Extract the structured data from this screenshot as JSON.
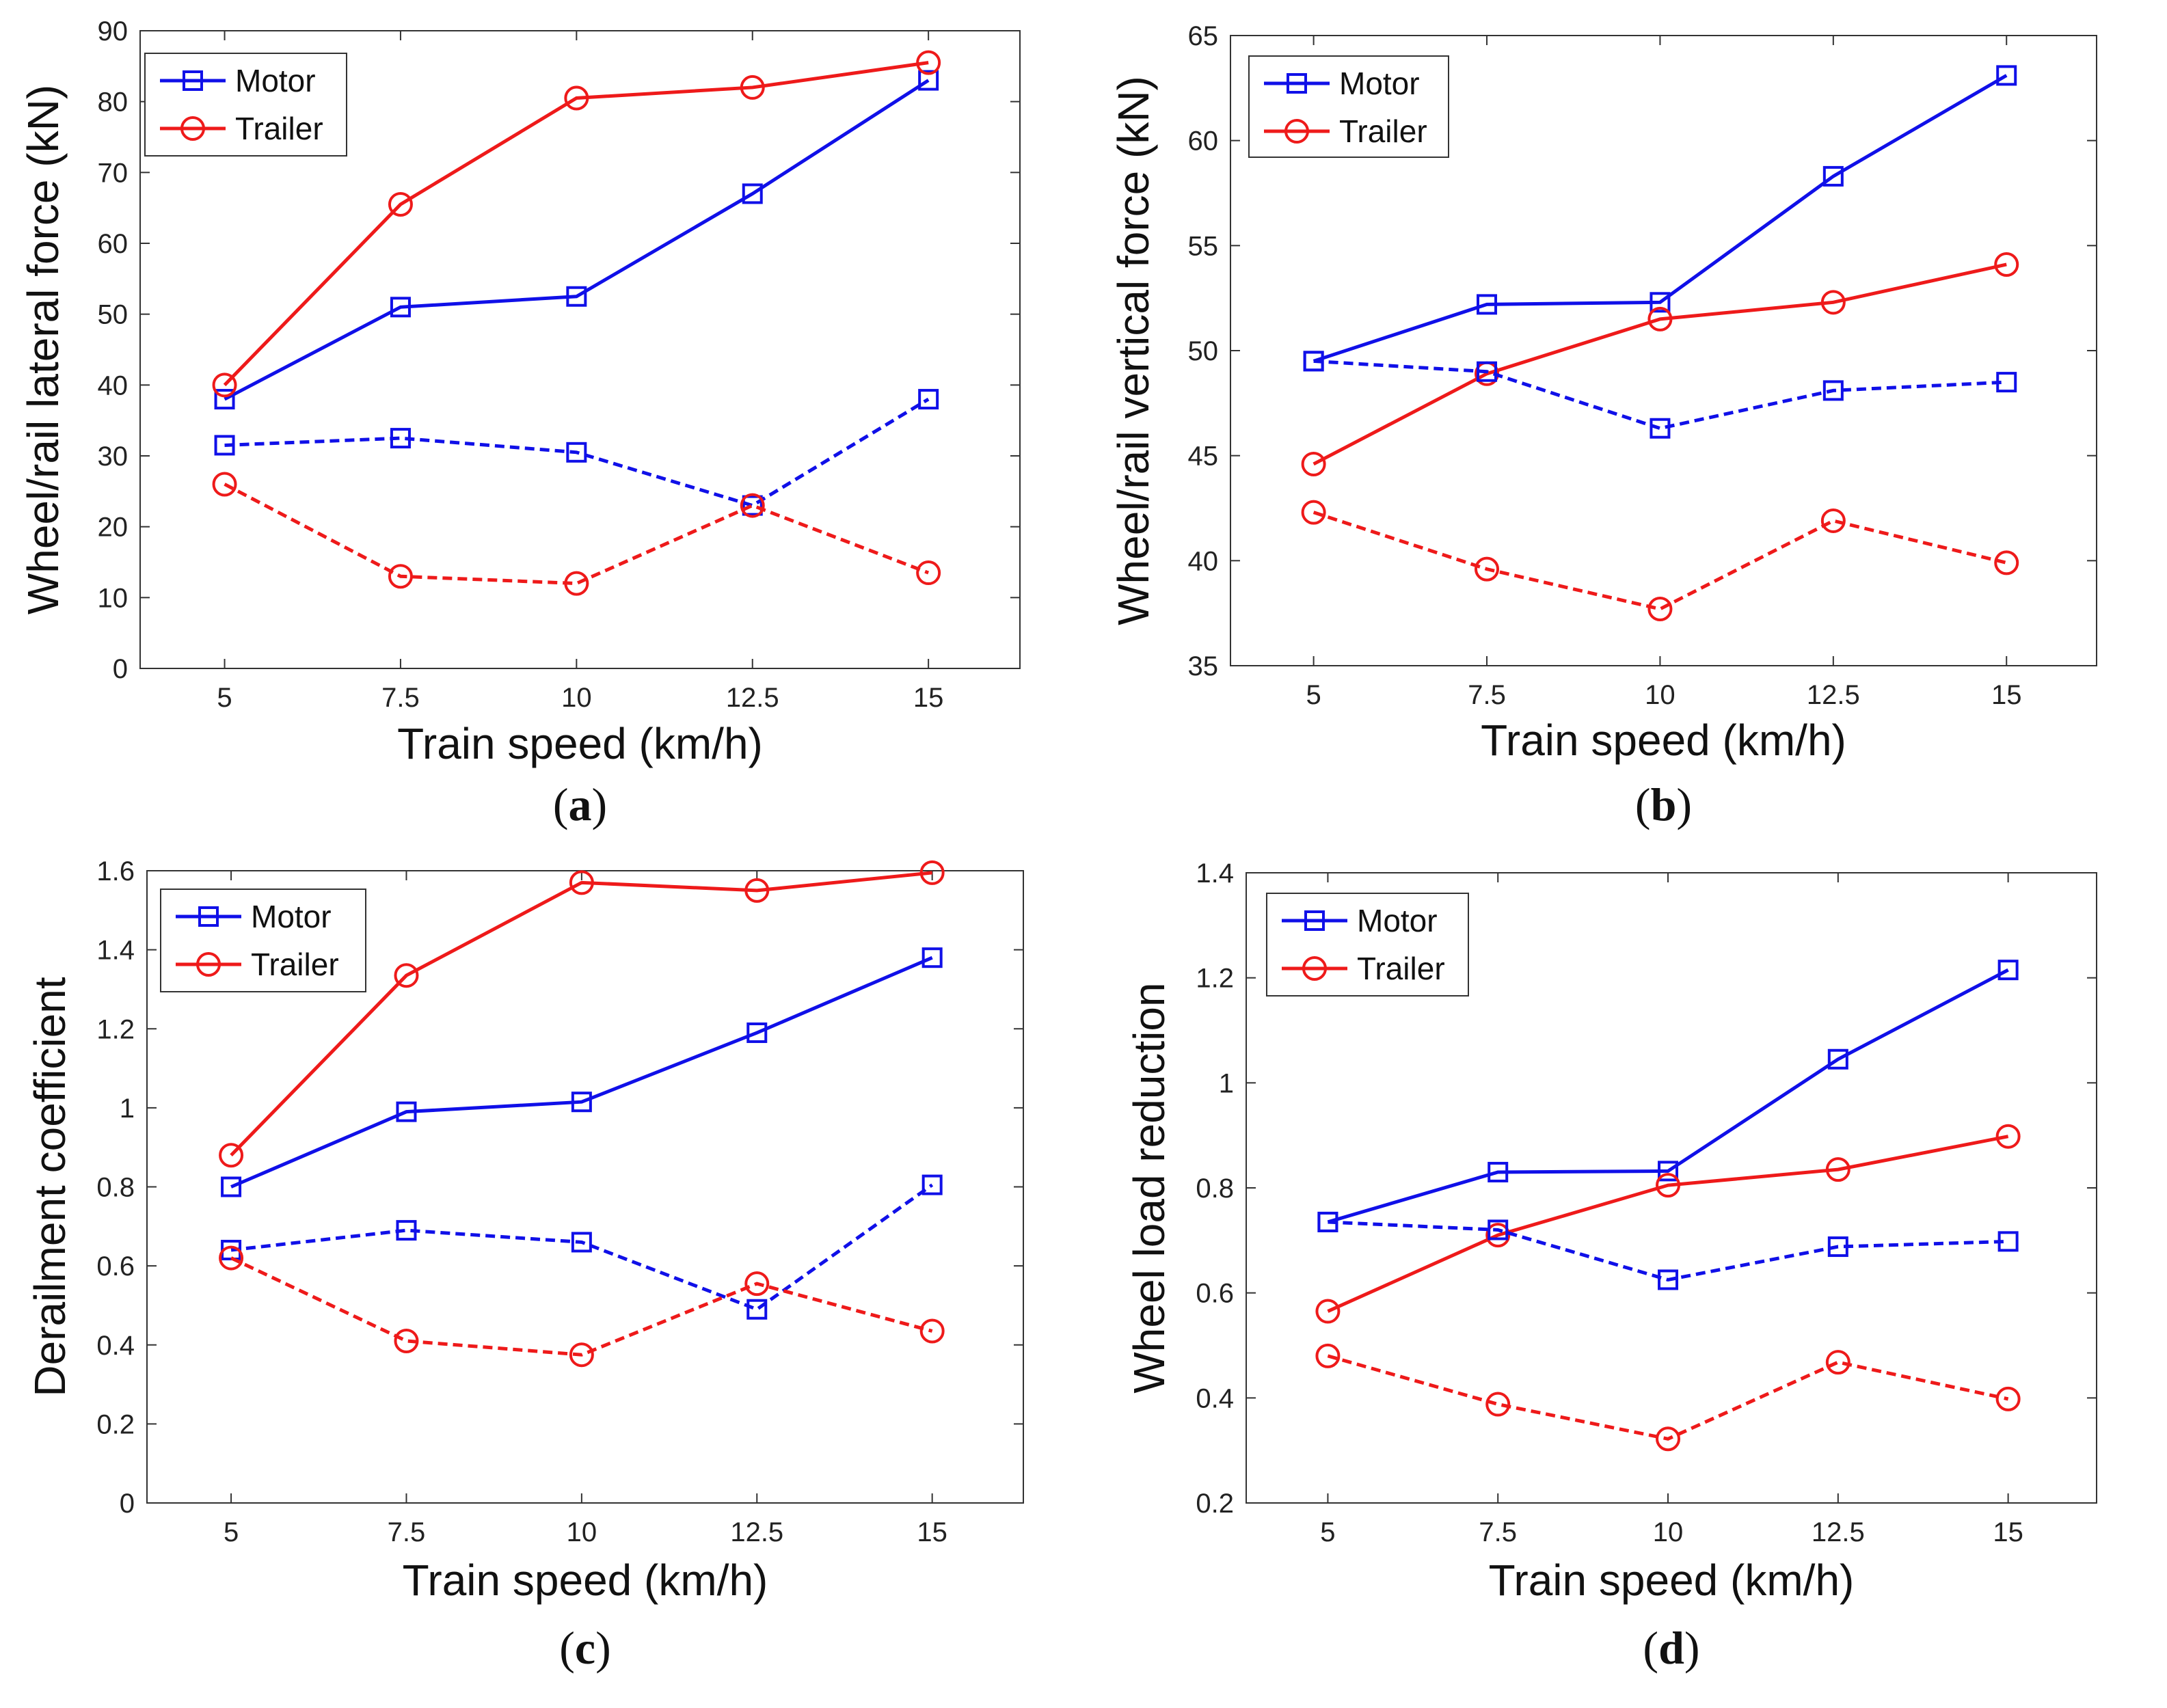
{
  "colors": {
    "motor": "#1010e8",
    "trailer": "#ee1a1a"
  },
  "legend": [
    "Motor",
    "Trailer"
  ],
  "chart_data": [
    {
      "panel": "a",
      "type": "line",
      "x": [
        5,
        7.5,
        10,
        12.5,
        15
      ],
      "xticks": [
        "5",
        "7.5",
        "10",
        "12.5",
        "15"
      ],
      "xlim": [
        3.8,
        16.3
      ],
      "ylim": [
        0,
        90
      ],
      "yticks": [
        0,
        10,
        20,
        30,
        40,
        50,
        60,
        70,
        80,
        90
      ],
      "ytick_labels": [
        "0",
        "10",
        "20",
        "30",
        "40",
        "50",
        "60",
        "70",
        "80",
        "90"
      ],
      "xlabel": "Train speed (km/h)",
      "ylabel": "Wheel/rail lateral force (kN)",
      "label": "a",
      "series": [
        {
          "name": "Motor",
          "style": "solid",
          "marker": "square",
          "color": "motor",
          "values": [
            38,
            51,
            52.5,
            67,
            83
          ]
        },
        {
          "name": "Trailer",
          "style": "solid",
          "marker": "circle",
          "color": "trailer",
          "values": [
            40,
            65.5,
            80.5,
            82,
            85.5
          ]
        },
        {
          "name": "Motor",
          "style": "dashed",
          "marker": "square",
          "color": "motor",
          "values": [
            31.5,
            32.5,
            30.5,
            23,
            38
          ]
        },
        {
          "name": "Trailer",
          "style": "dashed",
          "marker": "circle",
          "color": "trailer",
          "values": [
            26,
            13,
            12,
            23,
            13.5
          ]
        }
      ]
    },
    {
      "panel": "b",
      "type": "line",
      "x": [
        5,
        7.5,
        10,
        12.5,
        15
      ],
      "xticks": [
        "5",
        "7.5",
        "10",
        "12.5",
        "15"
      ],
      "xlim": [
        3.8,
        16.3
      ],
      "ylim": [
        35,
        65
      ],
      "yticks": [
        35,
        40,
        45,
        50,
        55,
        60,
        65
      ],
      "ytick_labels": [
        "35",
        "40",
        "45",
        "50",
        "55",
        "60",
        "65"
      ],
      "xlabel": "Train speed (km/h)",
      "ylabel": "Wheel/rail vertical force (kN)",
      "label": "b",
      "series": [
        {
          "name": "Motor",
          "style": "solid",
          "marker": "square",
          "color": "motor",
          "values": [
            49.5,
            52.2,
            52.3,
            58.3,
            63.1
          ]
        },
        {
          "name": "Trailer",
          "style": "solid",
          "marker": "circle",
          "color": "trailer",
          "values": [
            44.6,
            48.9,
            51.5,
            52.3,
            54.1
          ]
        },
        {
          "name": "Motor",
          "style": "dashed",
          "marker": "square",
          "color": "motor",
          "values": [
            49.5,
            49,
            46.3,
            48.1,
            48.5
          ]
        },
        {
          "name": "Trailer",
          "style": "dashed",
          "marker": "circle",
          "color": "trailer",
          "values": [
            42.3,
            39.6,
            37.7,
            41.9,
            39.9
          ]
        }
      ]
    },
    {
      "panel": "c",
      "type": "line",
      "x": [
        5,
        7.5,
        10,
        12.5,
        15
      ],
      "xticks": [
        "5",
        "7.5",
        "10",
        "12.5",
        "15"
      ],
      "xlim": [
        3.8,
        16.3
      ],
      "ylim": [
        0,
        1.6
      ],
      "yticks": [
        0,
        0.2,
        0.4,
        0.6,
        0.8,
        1.0,
        1.2,
        1.4,
        1.6
      ],
      "ytick_labels": [
        "0",
        "0.2",
        "0.4",
        "0.6",
        "0.8",
        "1",
        "1.2",
        "1.4",
        "1.6"
      ],
      "xlabel": "Train speed (km/h)",
      "ylabel": "Derailment coefficient",
      "label": "c",
      "series": [
        {
          "name": "Motor",
          "style": "solid",
          "marker": "square",
          "color": "motor",
          "values": [
            0.8,
            0.99,
            1.015,
            1.19,
            1.38
          ]
        },
        {
          "name": "Trailer",
          "style": "solid",
          "marker": "circle",
          "color": "trailer",
          "values": [
            0.88,
            1.335,
            1.57,
            1.55,
            1.595
          ]
        },
        {
          "name": "Motor",
          "style": "dashed",
          "marker": "square",
          "color": "motor",
          "values": [
            0.64,
            0.69,
            0.66,
            0.49,
            0.805
          ]
        },
        {
          "name": "Trailer",
          "style": "dashed",
          "marker": "circle",
          "color": "trailer",
          "values": [
            0.62,
            0.41,
            0.375,
            0.555,
            0.435
          ]
        }
      ]
    },
    {
      "panel": "d",
      "type": "line",
      "x": [
        5,
        7.5,
        10,
        12.5,
        15
      ],
      "xticks": [
        "5",
        "7.5",
        "10",
        "12.5",
        "15"
      ],
      "xlim": [
        3.8,
        16.3
      ],
      "ylim": [
        0.2,
        1.4
      ],
      "yticks": [
        0.2,
        0.4,
        0.6,
        0.8,
        1.0,
        1.2,
        1.4
      ],
      "ytick_labels": [
        "0.2",
        "0.4",
        "0.6",
        "0.8",
        "1",
        "1.2",
        "1.4"
      ],
      "xlabel": "Train speed (km/h)",
      "ylabel": "Wheel load reduction",
      "label": "d",
      "series": [
        {
          "name": "Motor",
          "style": "solid",
          "marker": "square",
          "color": "motor",
          "values": [
            0.735,
            0.83,
            0.832,
            1.045,
            1.215
          ]
        },
        {
          "name": "Trailer",
          "style": "solid",
          "marker": "circle",
          "color": "trailer",
          "values": [
            0.565,
            0.71,
            0.805,
            0.835,
            0.898
          ]
        },
        {
          "name": "Motor",
          "style": "dashed",
          "marker": "square",
          "color": "motor",
          "values": [
            0.735,
            0.72,
            0.625,
            0.688,
            0.698
          ]
        },
        {
          "name": "Trailer",
          "style": "dashed",
          "marker": "circle",
          "color": "trailer",
          "values": [
            0.48,
            0.388,
            0.322,
            0.468,
            0.398
          ]
        }
      ]
    }
  ]
}
